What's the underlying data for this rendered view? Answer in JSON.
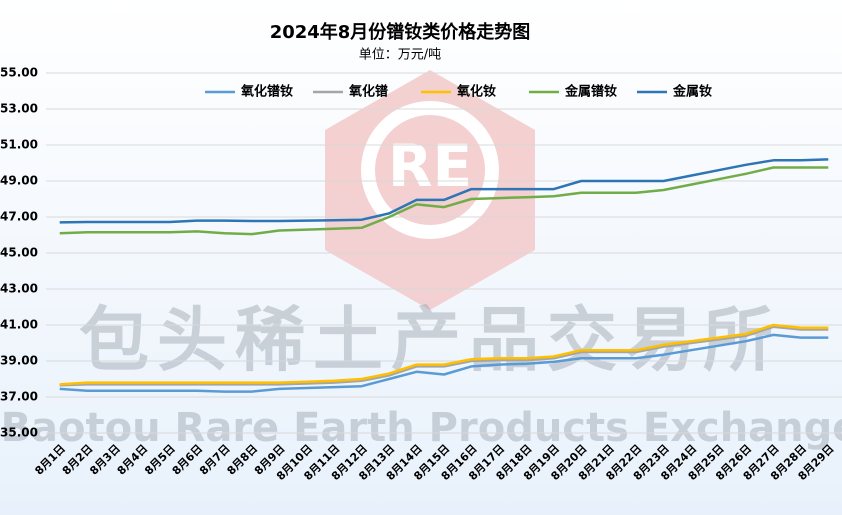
{
  "chart_data": {
    "type": "line",
    "title": "2024年8月份镨钕类价格走势图",
    "subtitle": "单位：万元/吨",
    "logo": "RE",
    "watermark": "包头稀土产品交易所",
    "watermark_en": "Baotou Rare Earth Products Exchange",
    "categories": [
      "8月1日",
      "8月2日",
      "8月3日",
      "8月4日",
      "8月5日",
      "8月6日",
      "8月7日",
      "8月8日",
      "8月9日",
      "8月10日",
      "8月11日",
      "8月12日",
      "8月13日",
      "8月14日",
      "8月15日",
      "8月16日",
      "8月17日",
      "8月18日",
      "8月19日",
      "8月20日",
      "8月21日",
      "8月22日",
      "8月23日",
      "8月24日",
      "8月25日",
      "8月26日",
      "8月27日",
      "8月28日",
      "8月29日"
    ],
    "series": [
      {
        "name": "氧化镨钕",
        "color": "#5b9bd5",
        "values": [
          37.45,
          37.35,
          37.35,
          37.35,
          37.35,
          37.35,
          37.3,
          37.3,
          37.45,
          37.5,
          37.55,
          37.6,
          38.0,
          38.4,
          38.25,
          38.7,
          38.8,
          38.85,
          38.95,
          39.15,
          39.15,
          39.15,
          39.35,
          39.6,
          39.85,
          40.1,
          40.45,
          40.3,
          40.3
        ]
      },
      {
        "name": "氧化镨",
        "color": "#a5a5a5",
        "values": [
          37.65,
          37.7,
          37.7,
          37.7,
          37.7,
          37.7,
          37.7,
          37.7,
          37.7,
          37.75,
          37.8,
          37.9,
          38.2,
          38.7,
          38.7,
          39.0,
          39.05,
          39.05,
          39.15,
          39.5,
          39.5,
          39.5,
          39.8,
          40.0,
          40.2,
          40.4,
          40.9,
          40.75,
          40.75
        ]
      },
      {
        "name": "氧化钕",
        "color": "#ffc000",
        "values": [
          37.7,
          37.8,
          37.8,
          37.8,
          37.8,
          37.8,
          37.8,
          37.8,
          37.8,
          37.85,
          37.9,
          38.0,
          38.3,
          38.8,
          38.8,
          39.1,
          39.15,
          39.15,
          39.25,
          39.6,
          39.6,
          39.6,
          39.9,
          40.1,
          40.3,
          40.5,
          41.0,
          40.85,
          40.85
        ]
      },
      {
        "name": "金属镨钕",
        "color": "#70ad47",
        "values": [
          46.1,
          46.15,
          46.15,
          46.15,
          46.15,
          46.2,
          46.1,
          46.05,
          46.25,
          46.3,
          46.35,
          46.4,
          47.0,
          47.7,
          47.55,
          48.0,
          48.05,
          48.1,
          48.15,
          48.35,
          48.35,
          48.35,
          48.5,
          48.8,
          49.1,
          49.4,
          49.75,
          49.75,
          49.75
        ]
      },
      {
        "name": "金属钕",
        "color": "#2e75b6",
        "values": [
          46.7,
          46.72,
          46.72,
          46.72,
          46.72,
          46.8,
          46.8,
          46.78,
          46.78,
          46.8,
          46.82,
          46.85,
          47.2,
          47.95,
          47.95,
          48.55,
          48.55,
          48.55,
          48.55,
          49.0,
          49.0,
          49.0,
          49.0,
          49.3,
          49.6,
          49.9,
          50.15,
          50.15,
          50.2
        ]
      }
    ],
    "ylim": [
      34.0,
      55.5
    ],
    "yticks": [
      {
        "value": 35,
        "label": "35.00"
      },
      {
        "value": 37,
        "label": "37.00"
      },
      {
        "value": 39,
        "label": "39.00"
      },
      {
        "value": 41,
        "label": "41.00"
      },
      {
        "value": 43,
        "label": "43.00"
      },
      {
        "value": 45,
        "label": "45.00"
      },
      {
        "value": 47,
        "label": "47.00"
      },
      {
        "value": 49,
        "label": "49.00"
      },
      {
        "value": 51,
        "label": "51.00"
      },
      {
        "value": 53,
        "label": "53.00"
      },
      {
        "value": 55,
        "label": "55.00"
      }
    ],
    "grid": true
  }
}
